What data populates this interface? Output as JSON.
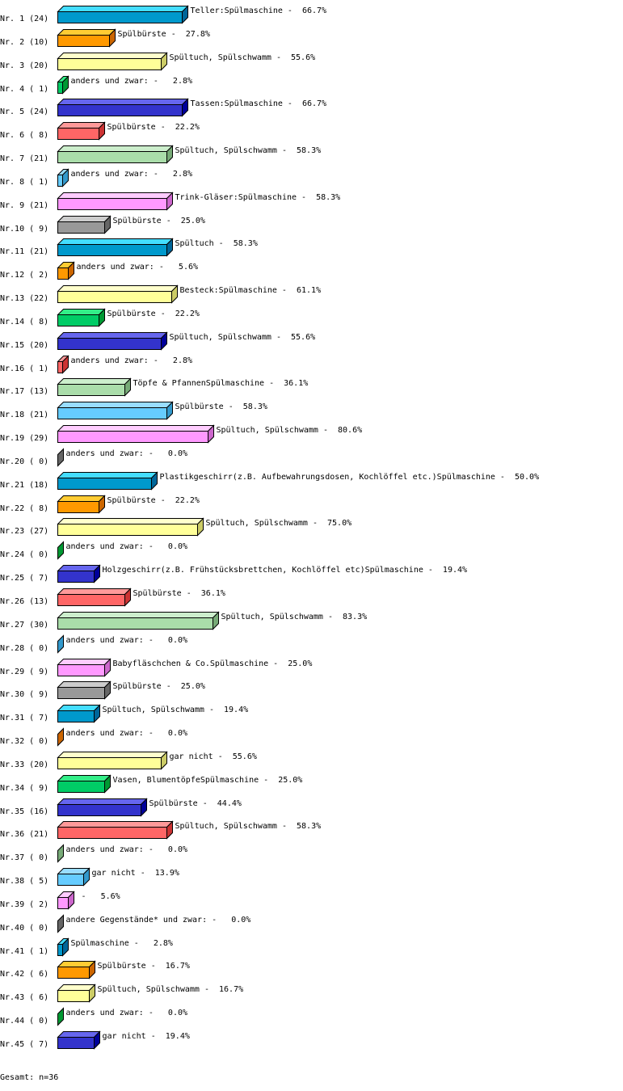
{
  "chart_data": {
    "type": "bar",
    "orientation": "horizontal",
    "style": "3d",
    "xlim": [
      0,
      100
    ],
    "unit": "%",
    "grid": false,
    "footer": "Gesamt: n=36",
    "palette": [
      {
        "front": "#0099cc",
        "top": "#44ddff",
        "side": "#006699"
      },
      {
        "front": "#ff9900",
        "top": "#ffcc33",
        "side": "#cc6600"
      },
      {
        "front": "#ffff99",
        "top": "#ffffcc",
        "side": "#cccc66"
      },
      {
        "front": "#00cc66",
        "top": "#33ee88",
        "side": "#009933"
      },
      {
        "front": "#3333cc",
        "top": "#6666ee",
        "side": "#000099"
      },
      {
        "front": "#ff6666",
        "top": "#ff9999",
        "side": "#cc3333"
      },
      {
        "front": "#aaddaa",
        "top": "#cceecc",
        "side": "#77aa77"
      },
      {
        "front": "#66ccff",
        "top": "#99ddff",
        "side": "#3399cc"
      },
      {
        "front": "#ff99ff",
        "top": "#ffccff",
        "side": "#cc66cc"
      },
      {
        "front": "#999999",
        "top": "#cccccc",
        "side": "#666666"
      }
    ],
    "categories": [
      "Nr. 1",
      "Nr. 2",
      "Nr. 3",
      "Nr. 4",
      "Nr. 5",
      "Nr. 6",
      "Nr. 7",
      "Nr. 8",
      "Nr. 9",
      "Nr.10",
      "Nr.11",
      "Nr.12",
      "Nr.13",
      "Nr.14",
      "Nr.15",
      "Nr.16",
      "Nr.17",
      "Nr.18",
      "Nr.19",
      "Nr.20",
      "Nr.21",
      "Nr.22",
      "Nr.23",
      "Nr.24",
      "Nr.25",
      "Nr.26",
      "Nr.27",
      "Nr.28",
      "Nr.29",
      "Nr.30",
      "Nr.31",
      "Nr.32",
      "Nr.33",
      "Nr.34",
      "Nr.35",
      "Nr.36",
      "Nr.37",
      "Nr.38",
      "Nr.39",
      "Nr.40",
      "Nr.41",
      "Nr.42",
      "Nr.43",
      "Nr.44",
      "Nr.45"
    ],
    "counts": [
      24,
      10,
      20,
      1,
      24,
      8,
      21,
      1,
      21,
      9,
      21,
      2,
      22,
      8,
      20,
      1,
      13,
      21,
      29,
      0,
      18,
      8,
      27,
      0,
      7,
      13,
      30,
      0,
      9,
      9,
      7,
      0,
      20,
      9,
      16,
      21,
      0,
      5,
      2,
      0,
      1,
      6,
      6,
      0,
      7
    ],
    "values": [
      66.7,
      27.8,
      55.6,
      2.8,
      66.7,
      22.2,
      58.3,
      2.8,
      58.3,
      25.0,
      58.3,
      5.6,
      61.1,
      22.2,
      55.6,
      2.8,
      36.1,
      58.3,
      80.6,
      0.0,
      50.0,
      22.2,
      75.0,
      0.0,
      19.4,
      36.1,
      83.3,
      0.0,
      25.0,
      25.0,
      19.4,
      0.0,
      55.6,
      25.0,
      44.4,
      58.3,
      0.0,
      13.9,
      5.6,
      0.0,
      2.8,
      16.7,
      16.7,
      0.0,
      19.4
    ],
    "bar_labels": [
      "Teller:Spülmaschine",
      "Spülbürste",
      "Spültuch, Spülschwamm",
      "anders und zwar:",
      "Tassen:Spülmaschine",
      "Spülbürste",
      "Spültuch, Spülschwamm",
      "anders und zwar:",
      "Trink-Gläser:Spülmaschine",
      "Spülbürste",
      "Spültuch",
      "anders und zwar:",
      "Besteck:Spülmaschine",
      "Spülbürste",
      "Spültuch, Spülschwamm",
      "anders und zwar:",
      "Töpfe & PfannenSpülmaschine",
      "Spülbürste",
      "Spültuch, Spülschwamm",
      "anders und zwar:",
      "Plastikgeschirr(z.B. Aufbewahrungsdosen, Kochlöffel etc.)Spülmaschine",
      "Spülbürste",
      "Spültuch, Spülschwamm",
      "anders und zwar:",
      "Holzgeschirr(z.B. Frühstücksbrettchen, Kochlöffel etc)Spülmaschine",
      "Spülbürste",
      "Spültuch, Spülschwamm",
      "anders und zwar:",
      "Babyfläschchen & Co.Spülmaschine",
      "Spülbürste",
      "Spültuch, Spülschwamm",
      "anders und zwar:",
      "gar nicht",
      "Vasen, BlumentöpfeSpülmaschine",
      "Spülbürste",
      "Spültuch, Spülschwamm",
      "anders und zwar:",
      "gar nicht",
      "",
      "andere Gegenstände* und zwar:",
      "Spülmaschine",
      "Spülbürste",
      "Spültuch, Spülschwamm",
      "anders und zwar:",
      "gar nicht"
    ]
  }
}
